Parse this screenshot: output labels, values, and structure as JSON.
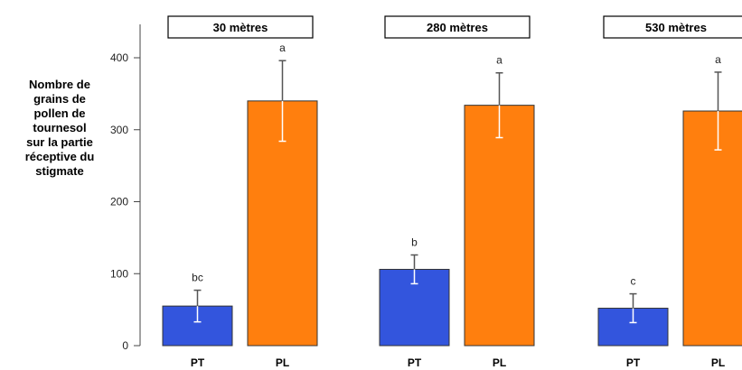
{
  "chart_data": {
    "type": "bar",
    "ylabel": "Nombre de\ngrains de\npollen de\ntournesol\nsur la partie\nréceptive du\nstigmate",
    "ylim": [
      0,
      400
    ],
    "yticks": [
      0,
      100,
      200,
      300,
      400
    ],
    "colors": {
      "PT": "#3355dd",
      "PL": "#ff7f0e"
    },
    "panels": [
      {
        "title": "30 mètres",
        "bars": [
          {
            "label": "PT",
            "value": 55,
            "err_low": 33,
            "err_high": 77,
            "letter": "bc"
          },
          {
            "label": "PL",
            "value": 340,
            "err_low": 284,
            "err_high": 396,
            "letter": "a"
          }
        ]
      },
      {
        "title": "280 mètres",
        "bars": [
          {
            "label": "PT",
            "value": 106,
            "err_low": 86,
            "err_high": 126,
            "letter": "b"
          },
          {
            "label": "PL",
            "value": 334,
            "err_low": 289,
            "err_high": 379,
            "letter": "a"
          }
        ]
      },
      {
        "title": "530 mètres",
        "bars": [
          {
            "label": "PT",
            "value": 52,
            "err_low": 32,
            "err_high": 72,
            "letter": "c"
          },
          {
            "label": "PL",
            "value": 326,
            "err_low": 272,
            "err_high": 380,
            "letter": "a"
          }
        ]
      }
    ]
  }
}
